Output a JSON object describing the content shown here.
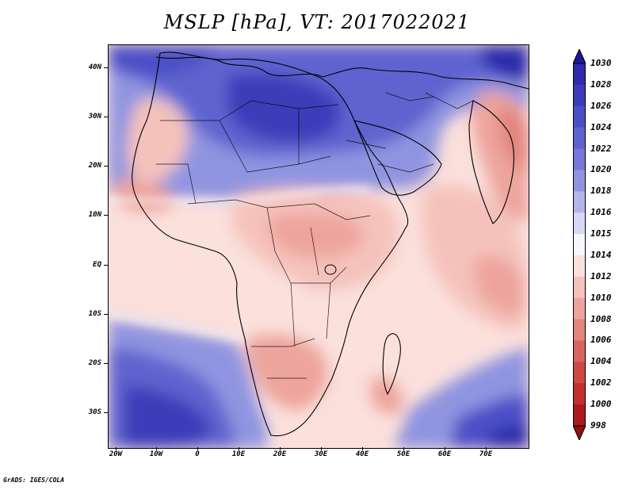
{
  "title": "MSLP [hPa], VT: 2017022021",
  "footer": "GrADS: IGES/COLA",
  "map": {
    "lat_labels": [
      "40N",
      "30N",
      "20N",
      "10N",
      "EQ",
      "10S",
      "20S",
      "30S"
    ],
    "lon_labels": [
      "20W",
      "10W",
      "0",
      "10E",
      "20E",
      "30E",
      "40E",
      "50E",
      "60E",
      "70E"
    ],
    "lat_range": [
      -37,
      45
    ],
    "lon_range": [
      -22,
      80
    ]
  },
  "colorbar": {
    "levels": [
      "1030",
      "1028",
      "1026",
      "1024",
      "1022",
      "1020",
      "1018",
      "1016",
      "1015",
      "1014",
      "1012",
      "1010",
      "1008",
      "1006",
      "1004",
      "1002",
      "1000",
      "998"
    ],
    "colors": [
      "#1c1a9c",
      "#2b2bab",
      "#3a3cb9",
      "#4b4fc6",
      "#5e63cf",
      "#7579d8",
      "#9094e0",
      "#b2b5ea",
      "#d6d8f5",
      "#f6f6fb",
      "#fbe0dc",
      "#f5c2bb",
      "#eda49c",
      "#e2857d",
      "#d7655f",
      "#cc4944",
      "#c0312f",
      "#a91b1d",
      "#8e1214"
    ]
  },
  "colors": {
    "high": "#1c1a9c",
    "low": "#8e1214",
    "background": "#ffffff"
  }
}
